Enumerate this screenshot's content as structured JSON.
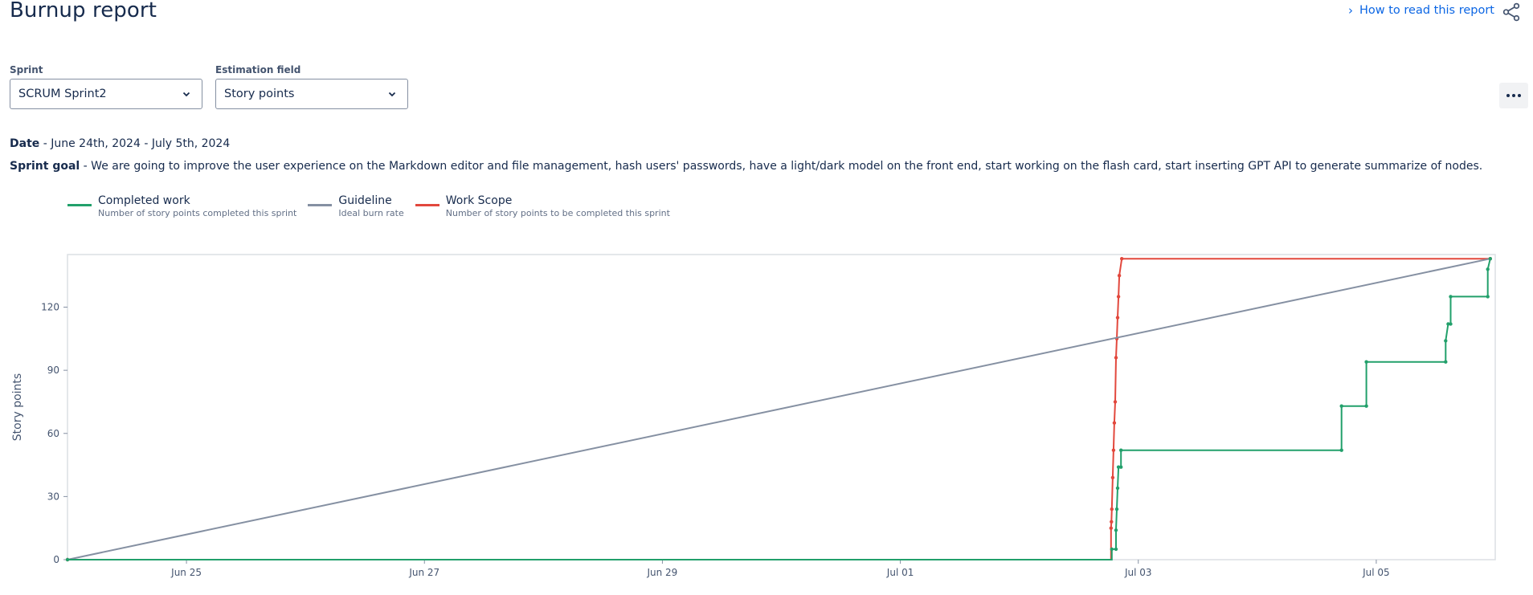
{
  "header": {
    "title": "Burnup report",
    "help_link": "How to read this report",
    "share_icon": "share-icon"
  },
  "filters": {
    "sprint_label": "Sprint",
    "sprint_value": "SCRUM Sprint2",
    "estimation_label": "Estimation field",
    "estimation_value": "Story points",
    "more_icon": "more-horizontal-icon"
  },
  "info": {
    "date_label": "Date",
    "date_value": " - June 24th, 2024 - July 5th, 2024",
    "goal_label": "Sprint goal",
    "goal_value": " - We are going to improve the user experience on the Markdown editor and file management, hash users' passwords, have a light/dark model on the front end, start working on the flash card, start inserting GPT API to generate summarize of nodes."
  },
  "legend": [
    {
      "name": "Completed work",
      "desc": "Number of story points completed this sprint",
      "color": "#22a06b"
    },
    {
      "name": "Guideline",
      "desc": "Ideal burn rate",
      "color": "#8590a2"
    },
    {
      "name": "Work Scope",
      "desc": "Number of story points to be completed this sprint",
      "color": "#e2483d"
    }
  ],
  "chart_data": {
    "type": "line",
    "ylabel": "Story points",
    "xlim": [
      "2024-06-24",
      "2024-07-06"
    ],
    "ylim": [
      0,
      145
    ],
    "yticks": [
      0,
      30,
      60,
      90,
      120
    ],
    "xticks": [
      {
        "date": "2024-06-25",
        "label": "Jun 25"
      },
      {
        "date": "2024-06-27",
        "label": "Jun 27"
      },
      {
        "date": "2024-06-29",
        "label": "Jun 29"
      },
      {
        "date": "2024-07-01",
        "label": "Jul 01"
      },
      {
        "date": "2024-07-03",
        "label": "Jul 03"
      },
      {
        "date": "2024-07-05",
        "label": "Jul 05"
      }
    ],
    "series": [
      {
        "name": "Work Scope",
        "color": "#e2483d",
        "points": [
          [
            "2024-06-24T00:00",
            0
          ],
          [
            "2024-07-02T18:30",
            0
          ],
          [
            "2024-07-02T18:30",
            15
          ],
          [
            "2024-07-02T18:35",
            18
          ],
          [
            "2024-07-02T18:40",
            24
          ],
          [
            "2024-07-02T18:50",
            39
          ],
          [
            "2024-07-02T19:00",
            52
          ],
          [
            "2024-07-02T19:10",
            65
          ],
          [
            "2024-07-02T19:20",
            75
          ],
          [
            "2024-07-02T19:30",
            96
          ],
          [
            "2024-07-02T19:40",
            105
          ],
          [
            "2024-07-02T19:50",
            115
          ],
          [
            "2024-07-02T20:00",
            125
          ],
          [
            "2024-07-02T20:10",
            135
          ],
          [
            "2024-07-02T20:40",
            143
          ],
          [
            "2024-07-05T23:00",
            143
          ]
        ]
      },
      {
        "name": "Guideline",
        "color": "#8590a2",
        "points": [
          [
            "2024-06-24T00:00",
            0
          ],
          [
            "2024-07-05T23:00",
            143
          ]
        ]
      },
      {
        "name": "Completed work",
        "color": "#22a06b",
        "points": [
          [
            "2024-06-24T00:00",
            0
          ],
          [
            "2024-07-02T18:40",
            0
          ],
          [
            "2024-07-02T18:40",
            5
          ],
          [
            "2024-07-02T19:30",
            5
          ],
          [
            "2024-07-02T19:30",
            14
          ],
          [
            "2024-07-02T19:40",
            24
          ],
          [
            "2024-07-02T19:50",
            34
          ],
          [
            "2024-07-02T20:00",
            44
          ],
          [
            "2024-07-02T20:30",
            44
          ],
          [
            "2024-07-02T20:30",
            52
          ],
          [
            "2024-07-04T17:00",
            52
          ],
          [
            "2024-07-04T17:00",
            73
          ],
          [
            "2024-07-04T22:00",
            73
          ],
          [
            "2024-07-04T22:00",
            94
          ],
          [
            "2024-07-05T14:00",
            94
          ],
          [
            "2024-07-05T14:00",
            104
          ],
          [
            "2024-07-05T14:30",
            112
          ],
          [
            "2024-07-05T15:00",
            112
          ],
          [
            "2024-07-05T15:00",
            125
          ],
          [
            "2024-07-05T22:30",
            125
          ],
          [
            "2024-07-05T22:30",
            138
          ],
          [
            "2024-07-05T23:00",
            143
          ]
        ]
      }
    ]
  }
}
